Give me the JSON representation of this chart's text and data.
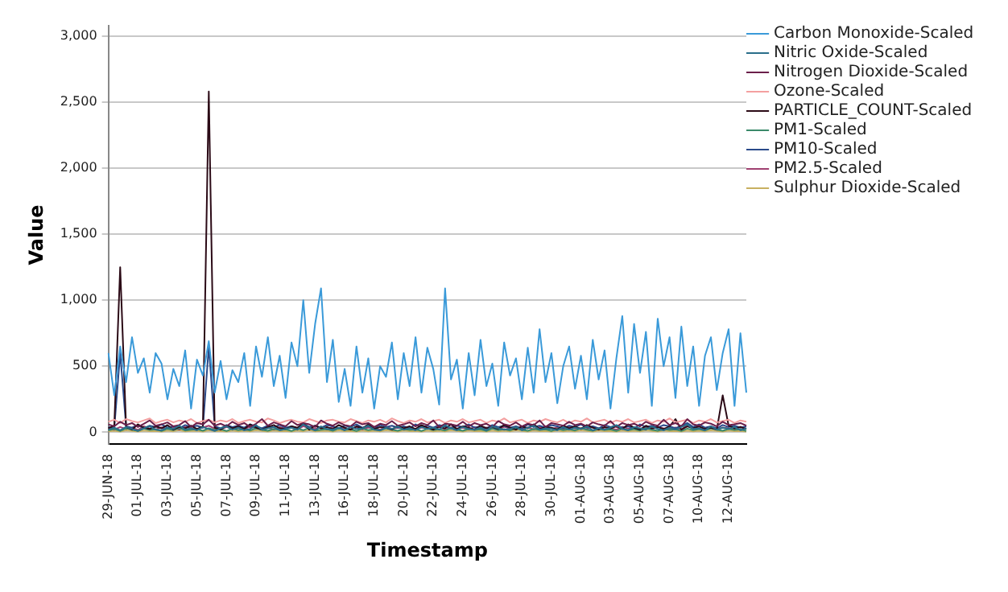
{
  "chart_data": {
    "type": "line",
    "xlabel": "Timestamp",
    "ylabel": "Value",
    "grid": "y",
    "legend": "top right",
    "ylim": [
      -90,
      3080
    ],
    "yticks": [
      0,
      500,
      {
        "value": 1000,
        "label": "1,000"
      },
      {
        "value": 1500,
        "label": "1,500"
      },
      {
        "value": 2000,
        "label": "2,000"
      },
      {
        "value": 2500,
        "label": "2,500"
      },
      {
        "value": 3000,
        "label": "3,000"
      }
    ],
    "categories": [
      "29-JUN-18",
      null,
      null,
      null,
      null,
      "01-JUL-18",
      null,
      null,
      null,
      null,
      "03-JUL-18",
      null,
      null,
      null,
      null,
      "05-JUL-18",
      null,
      null,
      null,
      null,
      "07-JUL-18",
      null,
      null,
      null,
      null,
      "09-JUL-18",
      null,
      null,
      null,
      null,
      "11-JUL-18",
      null,
      null,
      null,
      null,
      "13-JUL-18",
      null,
      null,
      null,
      null,
      "16-JUL-18",
      null,
      null,
      null,
      null,
      "18-JUL-18",
      null,
      null,
      null,
      null,
      "20-JUL-18",
      null,
      null,
      null,
      null,
      "22-JUL-18",
      null,
      null,
      null,
      null,
      "24-JUL-18",
      null,
      null,
      null,
      null,
      "26-JUL-18",
      null,
      null,
      null,
      null,
      "28-JUL-18",
      null,
      null,
      null,
      null,
      "30-JUL-18",
      null,
      null,
      null,
      null,
      "01-AUG-18",
      null,
      null,
      null,
      null,
      "03-AUG-18",
      null,
      null,
      null,
      null,
      "05-AUG-18",
      null,
      null,
      null,
      null,
      "07-AUG-18",
      null,
      null,
      null,
      null,
      "10-AUG-18",
      null,
      null,
      null,
      null,
      "12-AUG-18",
      null,
      null,
      null
    ],
    "series": [
      {
        "name": "Carbon Monoxide-Scaled",
        "color": "#3a9ad9",
        "values": [
          600,
          280,
          650,
          380,
          720,
          450,
          560,
          300,
          600,
          520,
          250,
          480,
          350,
          620,
          180,
          550,
          430,
          690,
          300,
          540,
          250,
          470,
          380,
          600,
          200,
          650,
          420,
          720,
          350,
          580,
          260,
          680,
          500,
          1000,
          450,
          820,
          1090,
          380,
          700,
          230,
          480,
          200,
          650,
          300,
          560,
          180,
          500,
          420,
          680,
          250,
          600,
          350,
          720,
          300,
          640,
          480,
          210,
          1090,
          400,
          550,
          180,
          600,
          280,
          700,
          350,
          520,
          200,
          680,
          430,
          560,
          250,
          640,
          300,
          780,
          380,
          600,
          220,
          500,
          650,
          330,
          580,
          250,
          700,
          400,
          620,
          180,
          560,
          880,
          300,
          820,
          450,
          760,
          200,
          860,
          500,
          720,
          260,
          800,
          350,
          650,
          200,
          580,
          720,
          320,
          600,
          780,
          200,
          750,
          300
        ]
      },
      {
        "name": "Nitric Oxide-Scaled",
        "color": "#2a6e8a",
        "values": [
          20,
          35,
          15,
          40,
          25,
          10,
          30,
          45,
          20,
          15,
          35,
          25,
          50,
          20,
          30,
          15,
          40,
          25,
          10,
          30,
          45,
          20,
          35,
          15,
          25,
          55,
          20,
          30,
          40,
          15,
          25,
          35,
          20,
          60,
          30,
          15,
          45,
          25,
          20,
          35,
          15,
          40,
          25,
          30,
          50,
          20,
          15,
          35,
          25,
          45,
          20,
          30,
          15,
          40,
          25,
          35,
          20,
          55,
          30,
          15,
          40,
          25,
          20,
          35,
          15,
          45,
          30,
          20,
          25,
          40,
          15,
          35,
          50,
          20,
          30,
          25,
          15,
          40,
          20,
          35,
          25,
          45,
          15,
          30,
          20,
          35,
          55,
          25,
          15,
          40,
          30,
          20,
          45,
          25,
          15,
          35,
          20,
          40,
          60,
          25,
          30,
          15,
          45,
          20,
          35,
          25,
          40,
          15,
          30
        ]
      },
      {
        "name": "Nitrogen Dioxide-Scaled",
        "color": "#6b1f4a",
        "values": [
          60,
          45,
          80,
          55,
          70,
          40,
          65,
          90,
          50,
          60,
          75,
          45,
          55,
          85,
          40,
          70,
          60,
          95,
          50,
          65,
          45,
          80,
          55,
          70,
          40,
          65,
          100,
          50,
          75,
          60,
          45,
          85,
          55,
          70,
          60,
          40,
          90,
          65,
          50,
          75,
          55,
          45,
          80,
          60,
          70,
          40,
          65,
          55,
          85,
          50,
          60,
          75,
          45,
          70,
          55,
          90,
          40,
          65,
          60,
          50,
          80,
          45,
          70,
          55,
          65,
          40,
          85,
          60,
          50,
          75,
          45,
          65,
          55,
          90,
          40,
          70,
          60,
          50,
          80,
          55,
          65,
          45,
          75,
          60,
          50,
          85,
          40,
          70,
          55,
          65,
          45,
          80,
          60,
          50,
          95,
          55,
          70,
          45,
          100,
          60,
          50,
          75,
          65,
          45,
          80,
          55,
          60,
          70,
          50
        ]
      },
      {
        "name": "Ozone-Scaled",
        "color": "#f4a0a0",
        "values": [
          80,
          95,
          70,
          100,
          85,
          75,
          90,
          105,
          70,
          85,
          95,
          75,
          90,
          80,
          100,
          70,
          85,
          95,
          75,
          90,
          80,
          100,
          70,
          85,
          95,
          80,
          75,
          105,
          90,
          70,
          85,
          95,
          80,
          75,
          100,
          85,
          70,
          90,
          95,
          80,
          75,
          100,
          85,
          70,
          90,
          80,
          95,
          75,
          105,
          85,
          70,
          90,
          80,
          100,
          75,
          85,
          95,
          70,
          90,
          80,
          100,
          75,
          85,
          95,
          70,
          90,
          80,
          105,
          75,
          85,
          95,
          70,
          90,
          80,
          100,
          85,
          75,
          95,
          70,
          90,
          80,
          105,
          75,
          85,
          95,
          70,
          90,
          80,
          100,
          75,
          85,
          95,
          70,
          90,
          80,
          105,
          75,
          85,
          95,
          70,
          90,
          80,
          100,
          75,
          85,
          95,
          70,
          90,
          80
        ]
      },
      {
        "name": "PARTICLE_COUNT-Scaled",
        "color": "#2b0a16",
        "values": [
          30,
          50,
          1250,
          40,
          20,
          60,
          35,
          25,
          45,
          30,
          55,
          20,
          40,
          30,
          50,
          25,
          45,
          2580,
          35,
          20,
          50,
          30,
          45,
          25,
          60,
          35,
          20,
          40,
          55,
          30,
          25,
          45,
          35,
          70,
          20,
          50,
          30,
          40,
          25,
          55,
          35,
          20,
          45,
          30,
          60,
          25,
          40,
          35,
          20,
          50,
          30,
          45,
          25,
          55,
          35,
          20,
          40,
          30,
          60,
          25,
          45,
          35,
          20,
          50,
          30,
          40,
          25,
          55,
          35,
          20,
          45,
          30,
          60,
          25,
          40,
          35,
          20,
          50,
          30,
          45,
          25,
          55,
          35,
          20,
          40,
          30,
          45,
          25,
          60,
          35,
          20,
          50,
          30,
          40,
          25,
          45,
          100,
          20,
          45,
          30,
          45,
          25,
          35,
          20,
          280,
          50,
          30,
          40,
          25
        ]
      },
      {
        "name": "PM1-Scaled",
        "color": "#3a8a6a",
        "values": [
          15,
          25,
          10,
          30,
          20,
          12,
          28,
          18,
          22,
          10,
          26,
          16,
          32,
          14,
          20,
          24,
          12,
          30,
          18,
          22,
          10,
          28,
          16,
          24,
          14,
          30,
          20,
          12,
          26,
          18,
          22,
          10,
          28,
          16,
          34,
          14,
          20,
          24,
          12,
          30,
          18,
          22,
          10,
          28,
          16,
          24,
          14,
          30,
          20,
          12,
          26,
          18,
          22,
          10,
          28,
          16,
          24,
          14,
          30,
          20,
          12,
          26,
          18,
          22,
          10,
          28,
          16,
          24,
          14,
          30,
          20,
          12,
          26,
          18,
          22,
          10,
          28,
          16,
          24,
          14,
          30,
          20,
          12,
          26,
          18,
          22,
          10,
          28,
          16,
          24,
          14,
          30,
          20,
          12,
          26,
          18,
          22,
          10,
          28,
          16,
          24,
          14,
          30,
          20,
          12,
          26,
          18,
          22,
          10
        ]
      },
      {
        "name": "PM10-Scaled",
        "color": "#2a4a8a",
        "values": [
          40,
          30,
          600,
          45,
          35,
          55,
          30,
          50,
          40,
          60,
          35,
          45,
          30,
          55,
          40,
          50,
          35,
          650,
          45,
          30,
          55,
          40,
          50,
          35,
          60,
          45,
          30,
          50,
          40,
          55,
          35,
          45,
          30,
          65,
          40,
          50,
          35,
          55,
          45,
          30,
          50,
          40,
          60,
          35,
          45,
          30,
          55,
          40,
          50,
          35,
          45,
          30,
          60,
          40,
          50,
          35,
          55,
          45,
          30,
          50,
          40,
          60,
          35,
          45,
          30,
          55,
          40,
          50,
          35,
          45,
          30,
          60,
          40,
          50,
          35,
          55,
          45,
          30,
          50,
          40,
          60,
          35,
          45,
          30,
          55,
          40,
          50,
          35,
          45,
          30,
          60,
          40,
          50,
          35,
          55,
          45,
          30,
          50,
          70,
          40,
          60,
          35,
          45,
          30,
          55,
          40,
          50,
          35,
          45
        ]
      },
      {
        "name": "PM2.5-Scaled",
        "color": "#a04070",
        "values": [
          30,
          20,
          40,
          25,
          35,
          18,
          45,
          28,
          22,
          38,
          26,
          34,
          20,
          42,
          30,
          24,
          36,
          50,
          28,
          20,
          40,
          26,
          32,
          22,
          44,
          30,
          24,
          36,
          20,
          40,
          28,
          34,
          22,
          46,
          30,
          26,
          38,
          20,
          42,
          28,
          32,
          24,
          40,
          22,
          36,
          30,
          20,
          44,
          26,
          34,
          28,
          40,
          22,
          36,
          30,
          24,
          46,
          20,
          38,
          28,
          34,
          22,
          40,
          26,
          36,
          30,
          20,
          42,
          28,
          34,
          24,
          38,
          22,
          40,
          30,
          26,
          36,
          20,
          44,
          28,
          32,
          24,
          40,
          22,
          36,
          30,
          20,
          42,
          28,
          34,
          24,
          38,
          22,
          40,
          30,
          26,
          36,
          20,
          60,
          28,
          32,
          24,
          40,
          22,
          36,
          30,
          20,
          42,
          28
        ]
      },
      {
        "name": "Sulphur Dioxide-Scaled",
        "color": "#c8b060",
        "values": [
          8,
          12,
          5,
          15,
          10,
          6,
          14,
          9,
          11,
          5,
          13,
          8,
          16,
          7,
          10,
          12,
          6,
          15,
          9,
          11,
          5,
          14,
          8,
          12,
          7,
          15,
          10,
          6,
          13,
          9,
          11,
          5,
          14,
          8,
          17,
          7,
          10,
          12,
          6,
          15,
          9,
          11,
          5,
          14,
          8,
          12,
          7,
          15,
          10,
          6,
          13,
          9,
          11,
          5,
          14,
          8,
          12,
          7,
          15,
          10,
          6,
          13,
          9,
          11,
          5,
          14,
          8,
          12,
          7,
          15,
          10,
          6,
          13,
          9,
          11,
          5,
          14,
          8,
          12,
          7,
          15,
          10,
          6,
          13,
          9,
          11,
          5,
          14,
          8,
          12,
          7,
          15,
          10,
          6,
          13,
          9,
          11,
          5,
          14,
          8,
          12,
          7,
          15,
          10,
          6,
          13,
          9,
          11,
          5
        ]
      }
    ]
  }
}
